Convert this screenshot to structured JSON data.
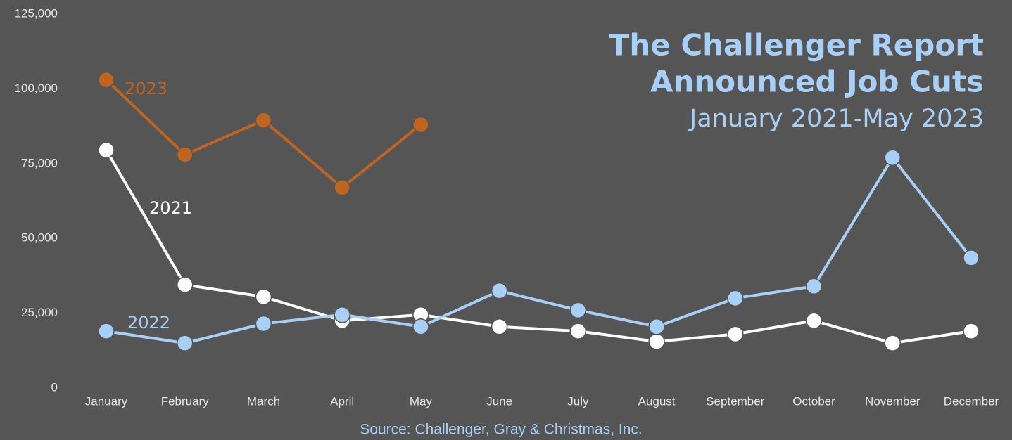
{
  "chart_data": {
    "type": "line",
    "title": [
      "The Challenger Report",
      "Announced Job Cuts"
    ],
    "subtitle": "January 2021-May 2023",
    "source": "Source: Challenger, Gray & Christmas, Inc.",
    "categories": [
      "January",
      "February",
      "March",
      "April",
      "May",
      "June",
      "July",
      "August",
      "September",
      "October",
      "November",
      "December"
    ],
    "series": [
      {
        "name": "2021",
        "color": "#ffffff",
        "values": [
          79500,
          34500,
          30500,
          22500,
          24500,
          20500,
          19000,
          15500,
          18000,
          22500,
          15000,
          19000
        ]
      },
      {
        "name": "2022",
        "color": "#a8cff5",
        "values": [
          19000,
          15000,
          21500,
          24500,
          20500,
          32500,
          26000,
          20500,
          30000,
          34000,
          77000,
          43500
        ]
      },
      {
        "name": "2023",
        "color": "#c0651f",
        "values": [
          103000,
          78000,
          89500,
          67000,
          88000,
          null,
          null,
          null,
          null,
          null,
          null,
          null
        ]
      }
    ],
    "ylim": [
      0,
      125000
    ],
    "yticks": [
      0,
      {
        "value": 25000,
        "label": "25,000"
      },
      {
        "value": 50000,
        "label": "50,000"
      },
      {
        "value": 75000,
        "label": "75,000"
      },
      {
        "value": 100000,
        "label": "100,000"
      },
      {
        "value": 125000,
        "label": "125,000"
      }
    ],
    "grid": false
  }
}
